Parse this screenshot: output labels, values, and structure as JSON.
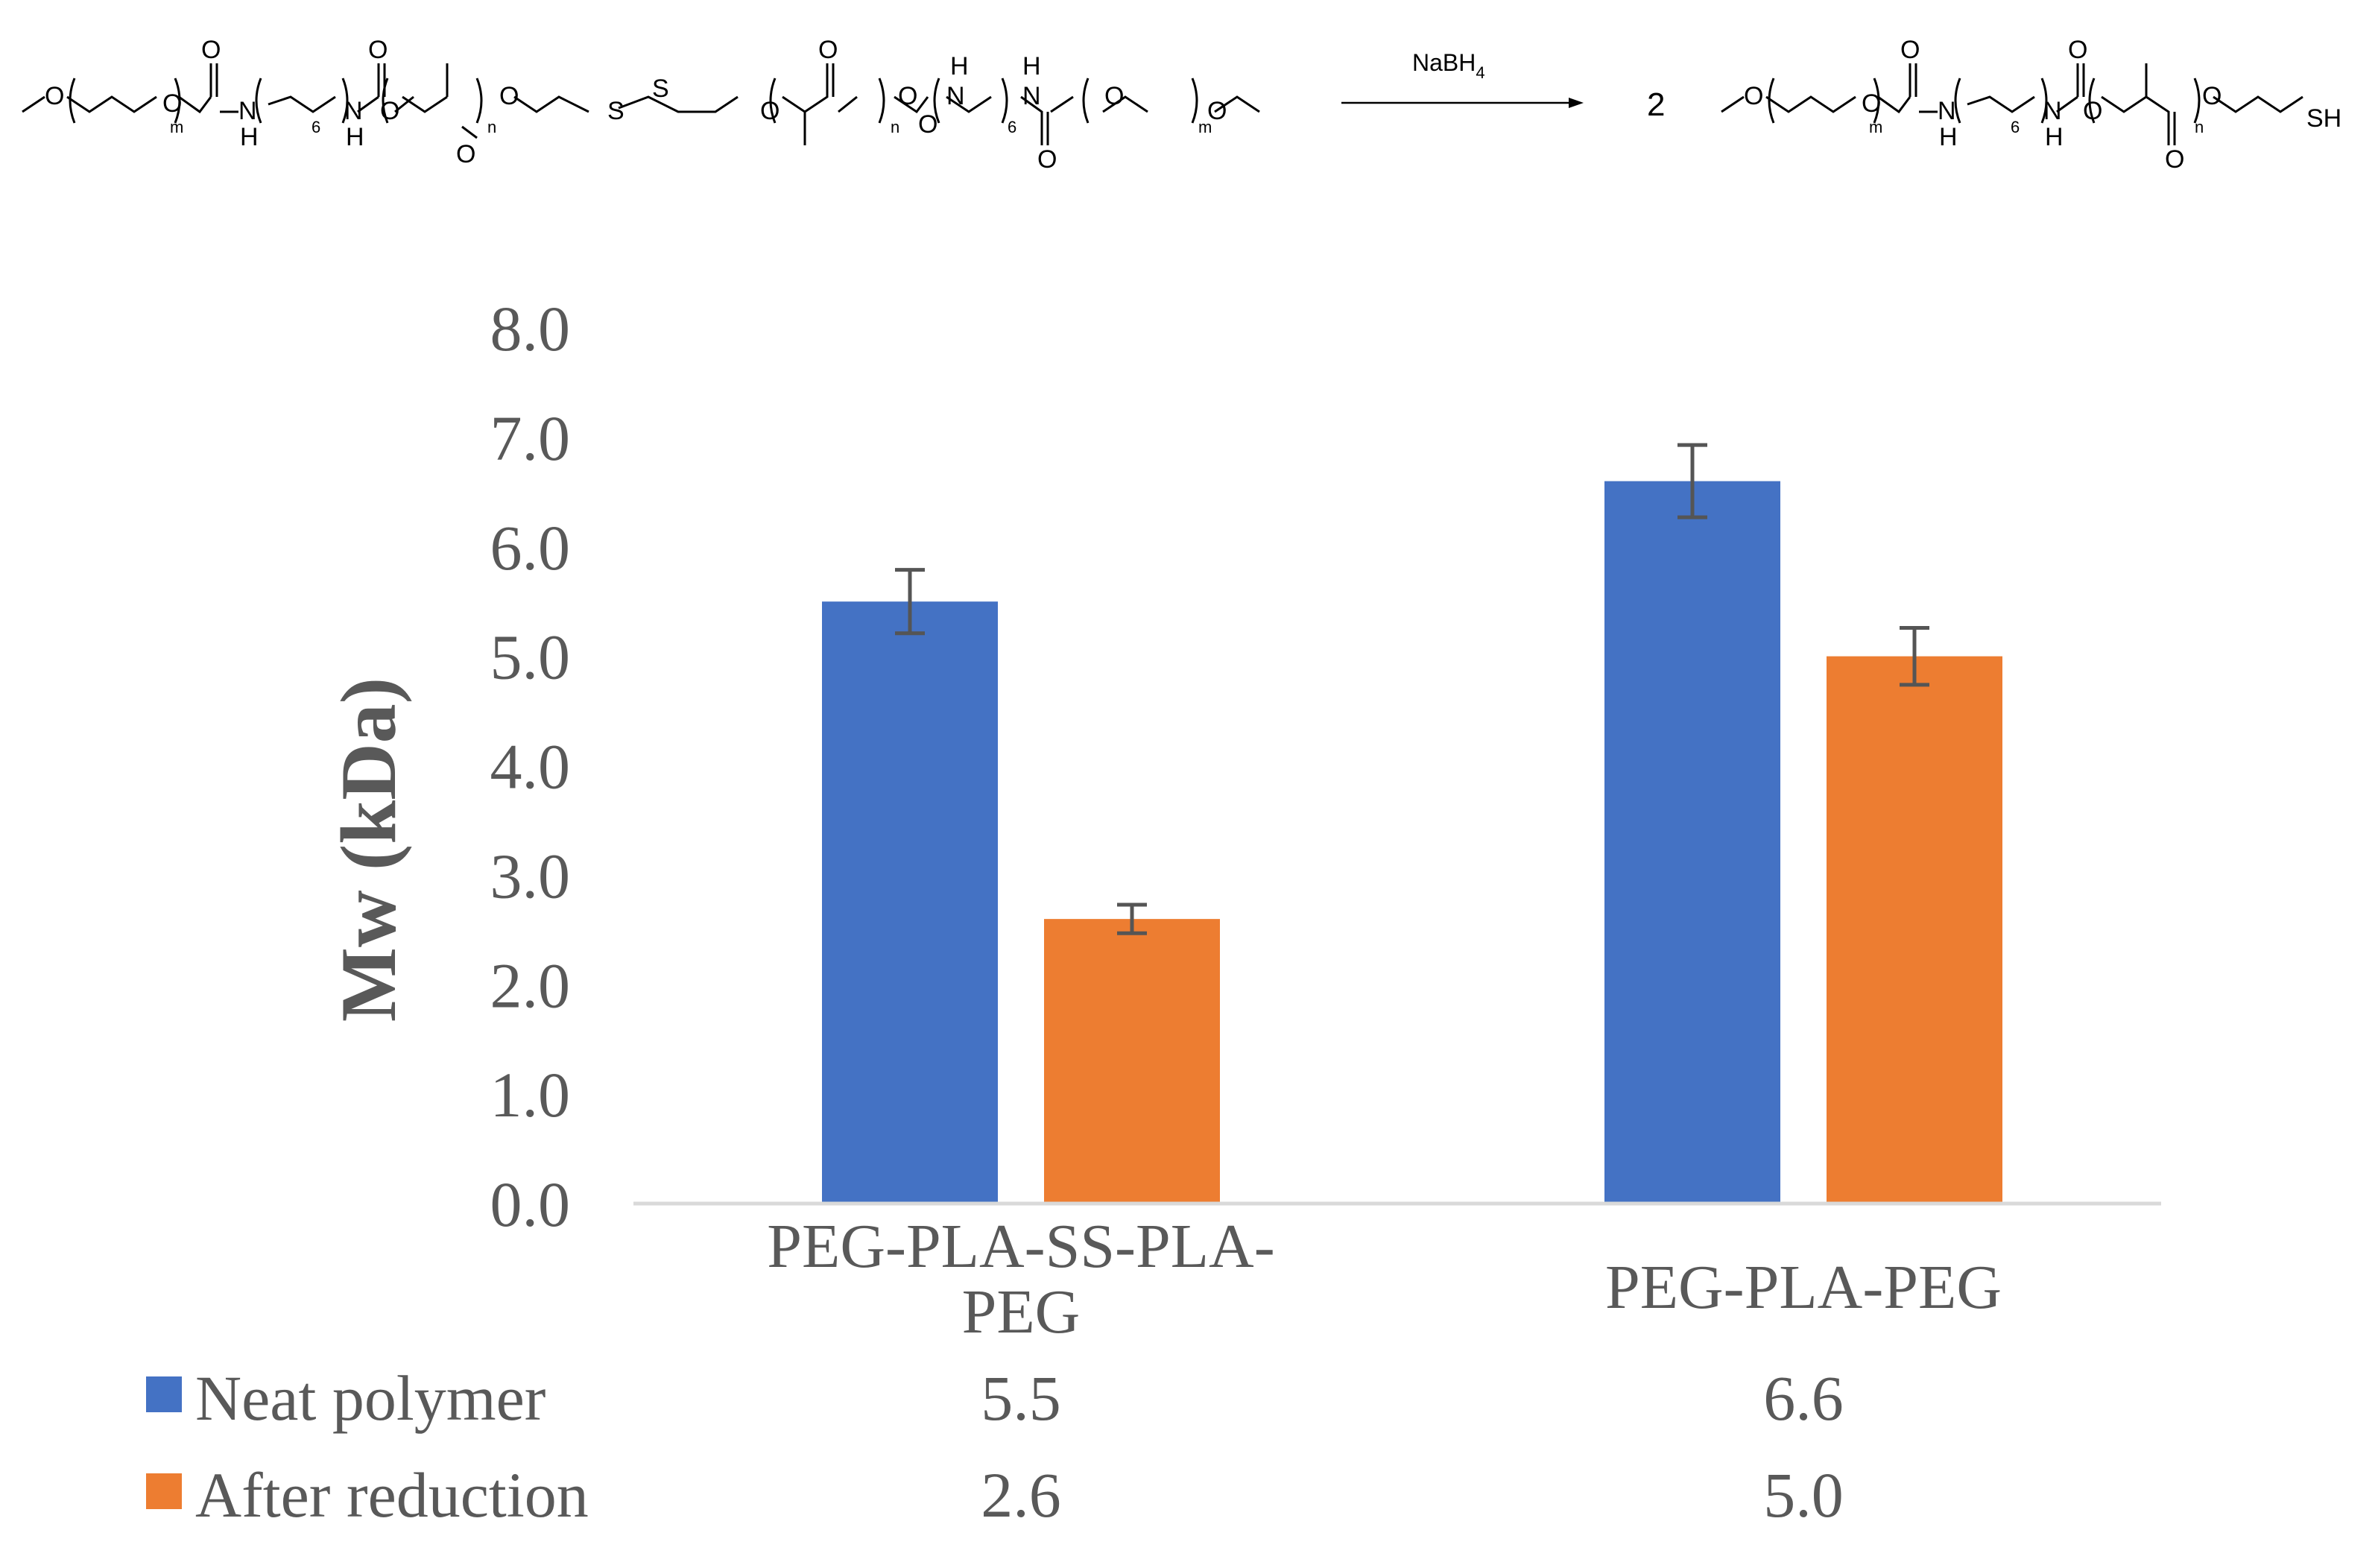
{
  "reaction": {
    "reagent": "NaBH",
    "reagent_subscript": "4",
    "coefficient": "2",
    "sub_m": "m",
    "sub_n": "n",
    "sub_6": "6",
    "atom_O": "O",
    "atom_N": "N",
    "atom_H": "H",
    "atom_S": "S",
    "atom_SH": "SH"
  },
  "chart_data": {
    "type": "bar",
    "title": "",
    "xlabel": "",
    "ylabel": "Mw (kDa)",
    "ylim": [
      0,
      8
    ],
    "yticks": [
      "0.0",
      "1.0",
      "2.0",
      "3.0",
      "4.0",
      "5.0",
      "6.0",
      "7.0",
      "8.0"
    ],
    "categories": [
      "PEG-PLA-SS-PLA-PEG",
      "PEG-PLA-PEG"
    ],
    "category_lines": [
      [
        "PEG-PLA-SS-PLA-",
        "PEG"
      ],
      [
        "PEG-PLA-PEG"
      ]
    ],
    "series": [
      {
        "name": "Neat polymer",
        "color": "#4472C4",
        "values": [
          5.5,
          6.6
        ],
        "errors": [
          0.29,
          0.33
        ],
        "labels": [
          "5.5",
          "6.6"
        ]
      },
      {
        "name": "After reduction",
        "color": "#ED7D31",
        "values": [
          2.6,
          5.0
        ],
        "errors": [
          0.13,
          0.26
        ],
        "labels": [
          "2.6",
          "5.0"
        ]
      }
    ],
    "error_bar_color": "#555555",
    "grid": false,
    "legend_position": "bottom data table"
  }
}
